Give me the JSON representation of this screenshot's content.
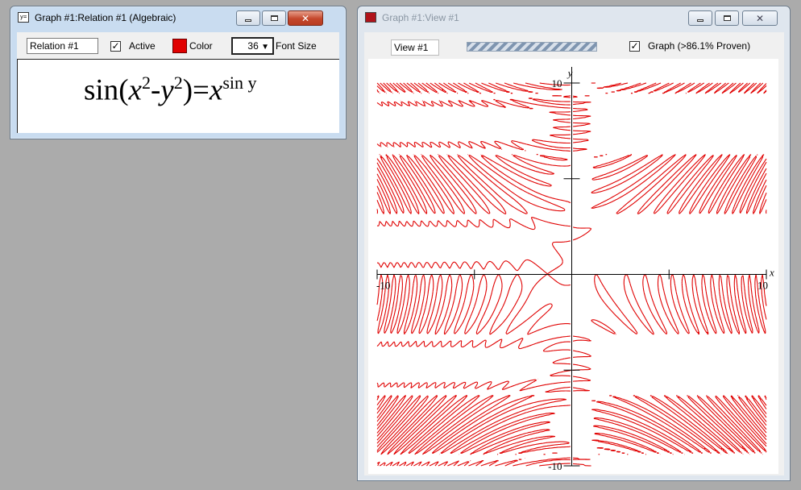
{
  "relation_window": {
    "title": "Graph #1:Relation #1 (Algebraic)",
    "icon": "relation-icon",
    "relation_name": "Relation #1",
    "active_label": "Active",
    "active_checked": true,
    "color_label": "Color",
    "color": "#e00000",
    "font_size_value": "36",
    "font_size_arrow": "▼",
    "font_size_label": "Font Size",
    "equation": {
      "sin": "sin",
      "open": "(",
      "x": "x",
      "exp2a": "2",
      "minus": "-",
      "y": "y",
      "exp2b": "2",
      "close": ")",
      "eq": "=",
      "rhs_x": "x",
      "rhs_exp": "sin y"
    }
  },
  "view_window": {
    "title": "Graph #1:View #1",
    "icon": "graph-icon",
    "view_name": "View #1",
    "graph_label": "Graph (>86.1% Proven)",
    "graph_checked": true,
    "proof_progress": 0.861
  },
  "plot": {
    "x_axis_label": "x",
    "y_axis_label": "y",
    "x_min_label": "-10",
    "x_max_label": "10",
    "y_max_label": "10",
    "y_min_label": "-10",
    "line_color": "#e00000"
  },
  "chart_data": {
    "type": "scatter",
    "relation": "sin(x^2 - y^2) = x^(sin y)",
    "xlim": [
      -10,
      10
    ],
    "ylim": [
      -10,
      10
    ],
    "xlabel": "x",
    "ylabel": "y",
    "x_ticks": [
      -10,
      -5,
      5,
      10
    ],
    "y_ticks": [
      -10,
      -5,
      5,
      10
    ],
    "grid": false
  }
}
